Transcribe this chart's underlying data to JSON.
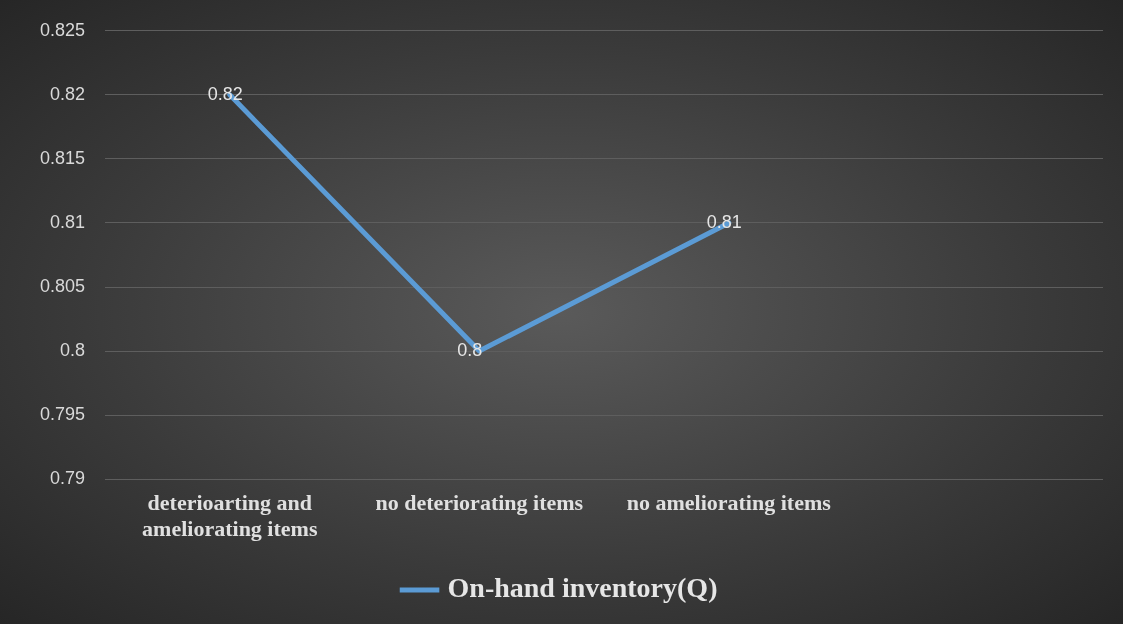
{
  "chart_data": {
    "type": "line",
    "categories": [
      "deterioarting and ameliorating items",
      "no deteriorating items",
      "no ameliorating items",
      null
    ],
    "series": [
      {
        "name": "On-hand inventory(Q)",
        "color": "#5b9bd5",
        "values": [
          0.82,
          0.8,
          0.81,
          null
        ]
      }
    ],
    "ylim": [
      0.79,
      0.825
    ],
    "yticks": [
      0.79,
      0.795,
      0.8,
      0.805,
      0.81,
      0.815,
      0.82,
      0.825
    ],
    "grid": "y",
    "legend": "bottom",
    "data_labels": true,
    "marker": "none",
    "line_style": "solid"
  }
}
